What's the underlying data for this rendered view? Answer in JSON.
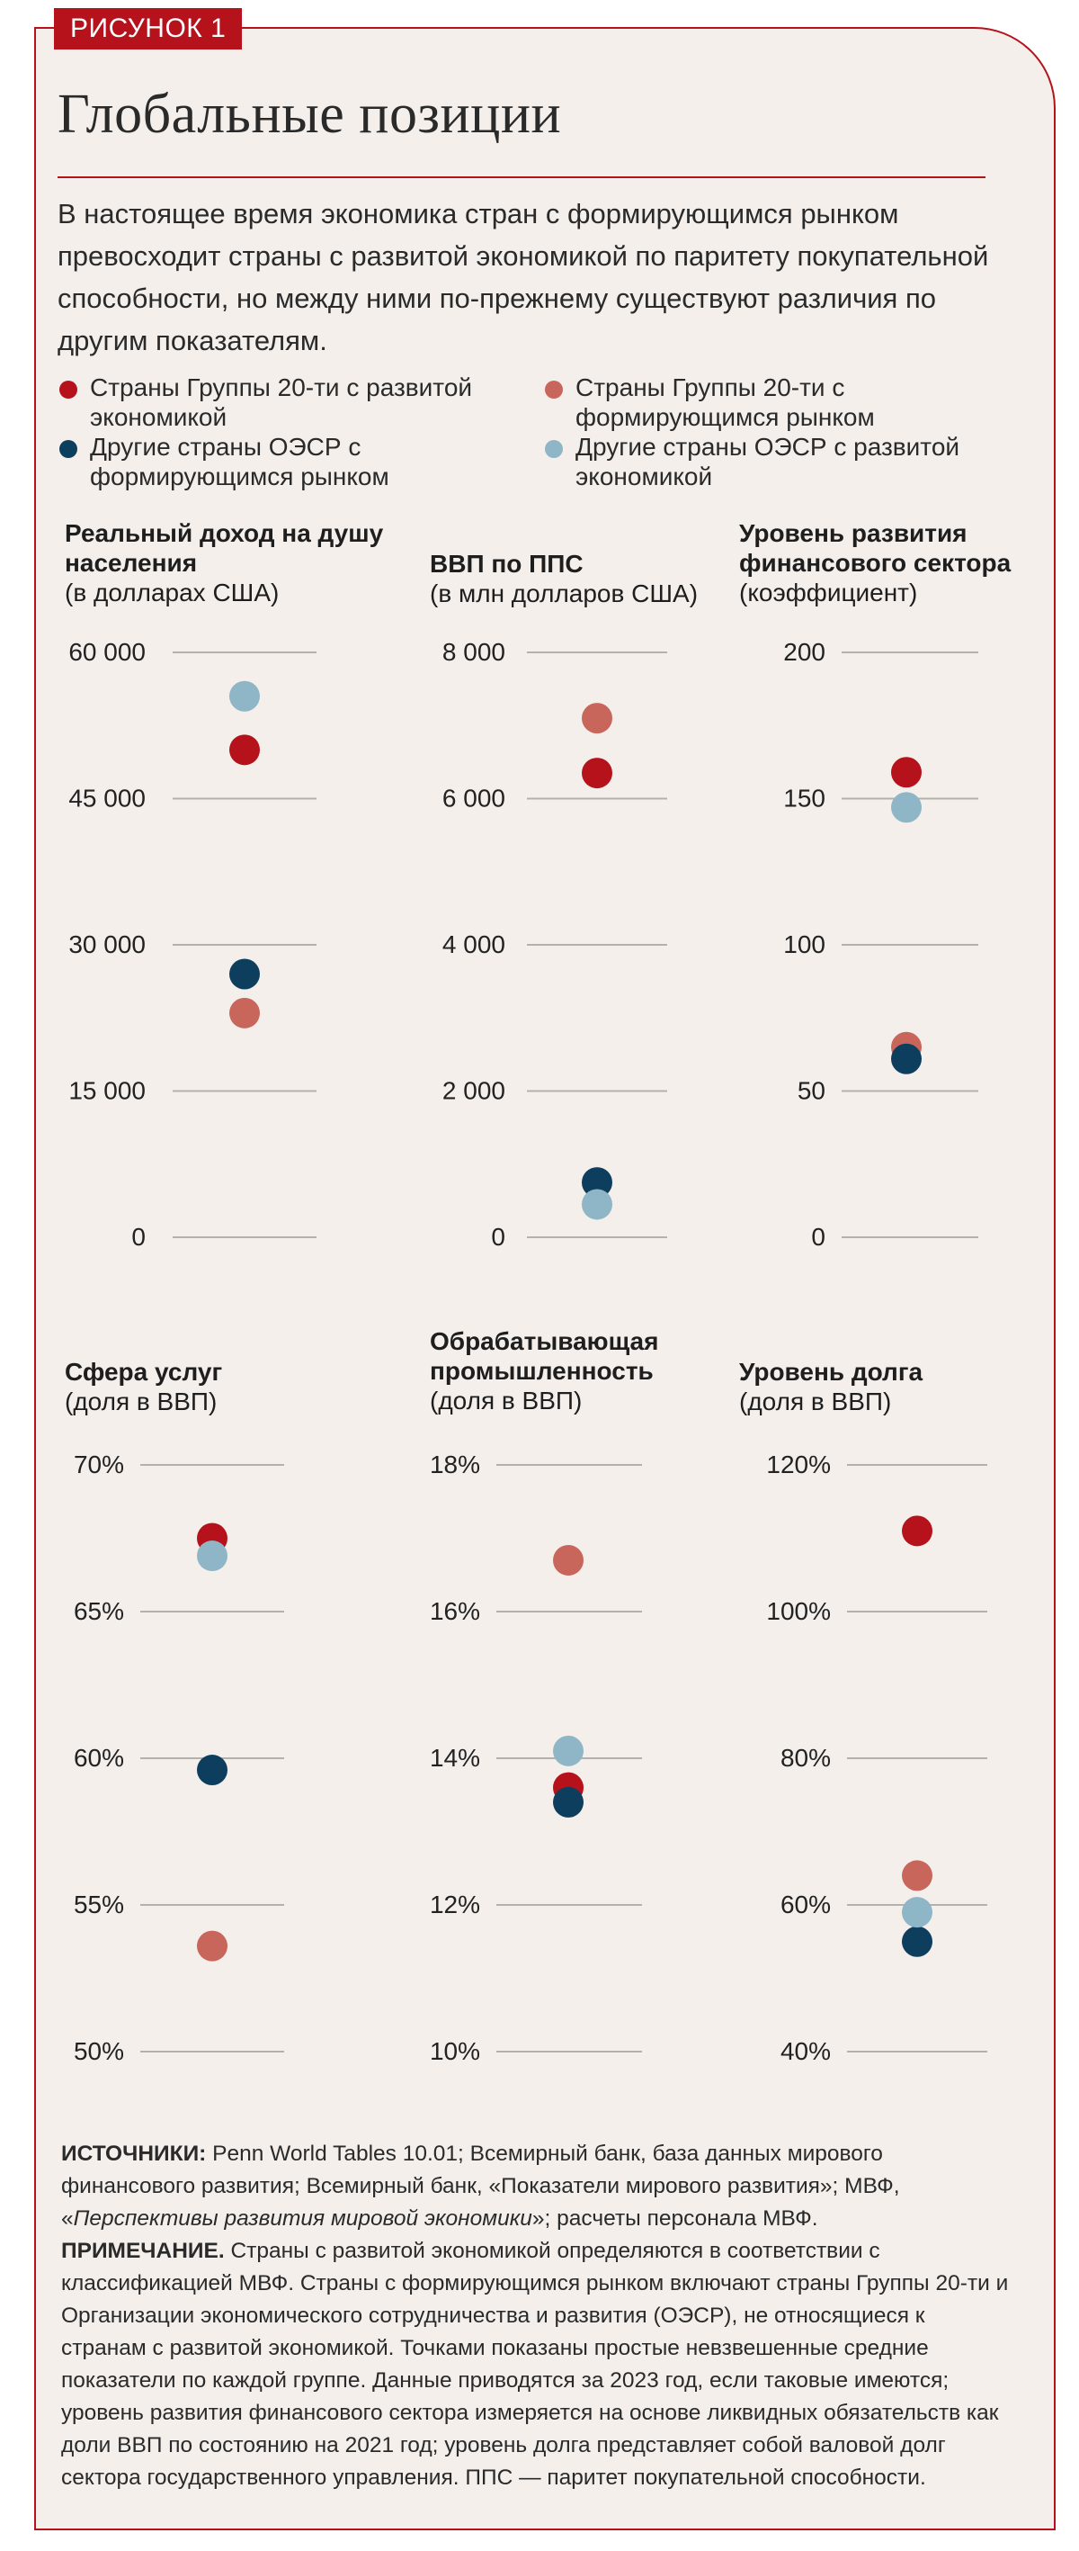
{
  "figure_label": "РИСУНОК 1",
  "title": "Глобальные позиции",
  "intro": "В настоящее время экономика стран с формирующимся рынком превосходит страны с развитой экономикой по паритету покупательной способности, но между ними по-прежнему существуют различия по другим показателям.",
  "legend": [
    {
      "label": "Страны Группы 20-ти с развитой экономикой",
      "color": "#b5121b"
    },
    {
      "label": "Страны Группы 20-ти с формирующимся рынком",
      "color": "#c9665c"
    },
    {
      "label": "Другие страны ОЭСР с формирующимся рынком",
      "color": "#0d3e5e"
    },
    {
      "label": "Другие страны ОЭСР с развитой экономикой",
      "color": "#8fb6c6"
    }
  ],
  "chart_data": [
    {
      "type": "scatter",
      "title": "Реальный доход на душу населения",
      "subtitle": "(в долларах США)",
      "ylim": [
        0,
        60000
      ],
      "ticks": [
        "60 000",
        "45 000",
        "30 000",
        "15 000",
        "0"
      ],
      "grid": true,
      "series": [
        {
          "name": "Страны Группы 20-ти с развитой экономикой",
          "value": 50000
        },
        {
          "name": "Страны Группы 20-ти с формирующимся рынком",
          "value": 23000
        },
        {
          "name": "Другие страны ОЭСР с формирующимся рынком",
          "value": 27000
        },
        {
          "name": "Другие страны ОЭСР с развитой экономикой",
          "value": 55500
        }
      ]
    },
    {
      "type": "scatter",
      "title": "ВВП по ППС",
      "subtitle": "(в млн долларов США)",
      "ylim": [
        0,
        8000
      ],
      "ticks": [
        "8 000",
        "6 000",
        "4 000",
        "2 000",
        "0"
      ],
      "grid": true,
      "series": [
        {
          "name": "Страны Группы 20-ти с развитой экономикой",
          "value": 6350
        },
        {
          "name": "Страны Группы 20-ти с формирующимся рынком",
          "value": 7100
        },
        {
          "name": "Другие страны ОЭСР с формирующимся рынком",
          "value": 750
        },
        {
          "name": "Другие страны ОЭСР с развитой экономикой",
          "value": 450
        }
      ]
    },
    {
      "type": "scatter",
      "title": "Уровень развития финансового сектора",
      "subtitle": "(коэффициент)",
      "ylim": [
        0,
        200
      ],
      "ticks": [
        "200",
        "150",
        "100",
        "50",
        "0"
      ],
      "grid": true,
      "series": [
        {
          "name": "Страны Группы 20-ти с развитой экономикой",
          "value": 159
        },
        {
          "name": "Страны Группы 20-ти с формирующимся рынком",
          "value": 65
        },
        {
          "name": "Другие страны ОЭСР с формирующимся рынком",
          "value": 61
        },
        {
          "name": "Другие страны ОЭСР с развитой экономикой",
          "value": 147
        }
      ]
    },
    {
      "type": "scatter",
      "title": "Сфера услуг",
      "subtitle": "(доля в ВВП)",
      "ylim": [
        50,
        70
      ],
      "ticks": [
        "70%",
        "65%",
        "60%",
        "55%",
        "50%"
      ],
      "grid": true,
      "series": [
        {
          "name": "Страны Группы 20-ти с развитой экономикой",
          "value": 67.5
        },
        {
          "name": "Страны Группы 20-ти с формирующимся рынком",
          "value": 53.6
        },
        {
          "name": "Другие страны ОЭСР с формирующимся рынком",
          "value": 59.6
        },
        {
          "name": "Другие страны ОЭСР с развитой экономикой",
          "value": 66.9
        }
      ]
    },
    {
      "type": "scatter",
      "title": "Обрабатывающая промышленность",
      "subtitle": "(доля в ВВП)",
      "ylim": [
        10,
        18
      ],
      "ticks": [
        "18%",
        "16%",
        "14%",
        "12%",
        "10%"
      ],
      "grid": true,
      "series": [
        {
          "name": "Страны Группы 20-ти с развитой экономикой",
          "value": 13.6
        },
        {
          "name": "Страны Группы 20-ти с формирующимся рынком",
          "value": 16.7
        },
        {
          "name": "Другие страны ОЭСР с формирующимся рынком",
          "value": 13.4
        },
        {
          "name": "Другие страны ОЭСР с развитой экономикой",
          "value": 14.1
        }
      ]
    },
    {
      "type": "scatter",
      "title": "Уровень долга",
      "subtitle": "(доля в ВВП)",
      "ylim": [
        40,
        120
      ],
      "ticks": [
        "120%",
        "100%",
        "80%",
        "60%",
        "40%"
      ],
      "grid": true,
      "series": [
        {
          "name": "Страны Группы 20-ти с развитой экономикой",
          "value": 111
        },
        {
          "name": "Страны Группы 20-ти с формирующимся рынком",
          "value": 64
        },
        {
          "name": "Другие страны ОЭСР с формирующимся рынком",
          "value": 55
        },
        {
          "name": "Другие страны ОЭСР с развитой экономикой",
          "value": 59
        }
      ]
    }
  ],
  "sources": {
    "label": "ИСТОЧНИКИ:",
    "text": "Penn World Tables 10.01; Всемирный банк, база данных мирового финансового развития; Всемирный банк, «Показатели мирового развития»; МВФ, «",
    "italic": "Перспективы развития мировой экономики",
    "text2": "»; расчеты персонала МВФ."
  },
  "note": {
    "label": "ПРИМЕЧАНИЕ.",
    "text": "Страны с развитой экономикой определяются в соответствии с классификацией МВФ. Страны с формирующимся рынком включают страны Группы 20-ти и Организации экономического сотрудничества и развития (ОЭСР), не относящиеся к странам с развитой экономикой. Точками показаны простые невзвешенные средние показатели по каждой группе. Данные приводятся за 2023 год, если таковые имеются; уровень развития финансового сектора измеряется на основе ликвидных обязательств как доли ВВП по состоянию на 2021 год; уровень долга представляет собой валовой долг сектора государственного управления. ППС — паритет покупательной способности."
  }
}
